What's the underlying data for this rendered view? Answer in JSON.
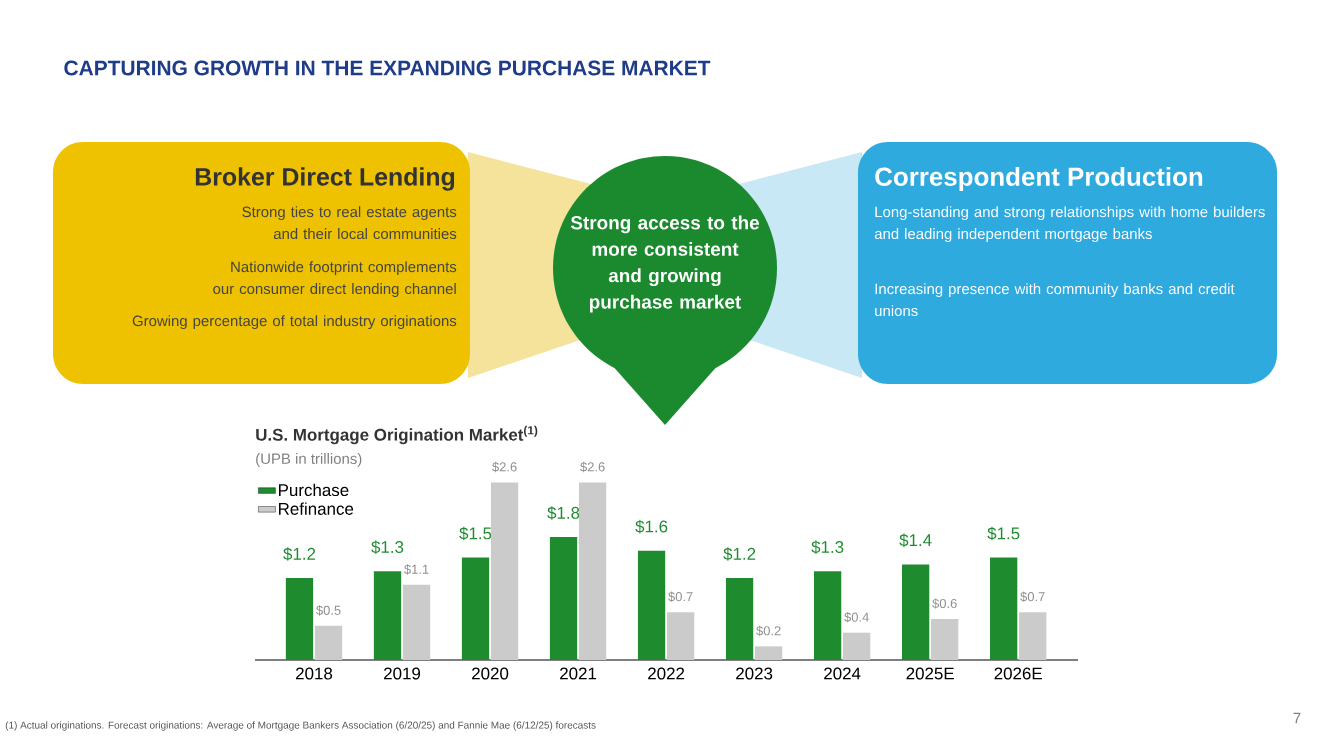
{
  "chart_data": [
    {
      "type": "other",
      "title": "CAPTURING GROWTH IN THE EXPANDING PURCHASE MARKET",
      "annotations": [
        "Broker Direct Lending",
        "Strong ties to real estate agents and their local communities",
        "Nationwide footprint complements our consumer direct lending channel",
        "Growing percentage of total industry originations",
        "Strong access to the more consistent and growing purchase market",
        "Correspondent Production",
        "Long-standing and strong relationships with home builders and leading independent mortgage banks",
        "Increasing presence with community banks and credit unions",
        "7"
      ]
    },
    {
      "type": "bar",
      "title": "U.S. Mortgage Origination Market$^{(1)}$",
      "subtitle": "(UPB in trillions)",
      "categories": [
        "2018",
        "2019",
        "2020",
        "2021",
        "2022",
        "2023",
        "2024",
        "2025E",
        "2026E"
      ],
      "series": [
        {
          "name": "Purchase",
          "color": "#1e8b2f",
          "values": [
            1.2,
            1.3,
            1.5,
            1.8,
            1.6,
            1.2,
            1.3,
            1.4,
            1.5
          ],
          "value_labels": [
            "$1.2",
            "$1.3",
            "$1.5",
            "$1.8",
            "$1.6",
            "$1.2",
            "$1.3",
            "$1.4",
            "$1.5"
          ]
        },
        {
          "name": "Refinance",
          "color": "#cbcbcb",
          "values": [
            0.5,
            1.1,
            2.6,
            2.6,
            0.7,
            0.2,
            0.4,
            0.6,
            0.7
          ],
          "value_labels": [
            "$0.5",
            "$1.1",
            "$2.6",
            "$2.6",
            "$0.7",
            "$0.2",
            "$0.4",
            "$0.6",
            "$0.7"
          ]
        }
      ],
      "legend": "top left",
      "annotations": [
        "(1) Actual originations. Forecast originations: Average of Mortgage Bankers Association (6/20/25) and Fannie Mae (6/12/25) forecasts"
      ]
    }
  ]
}
